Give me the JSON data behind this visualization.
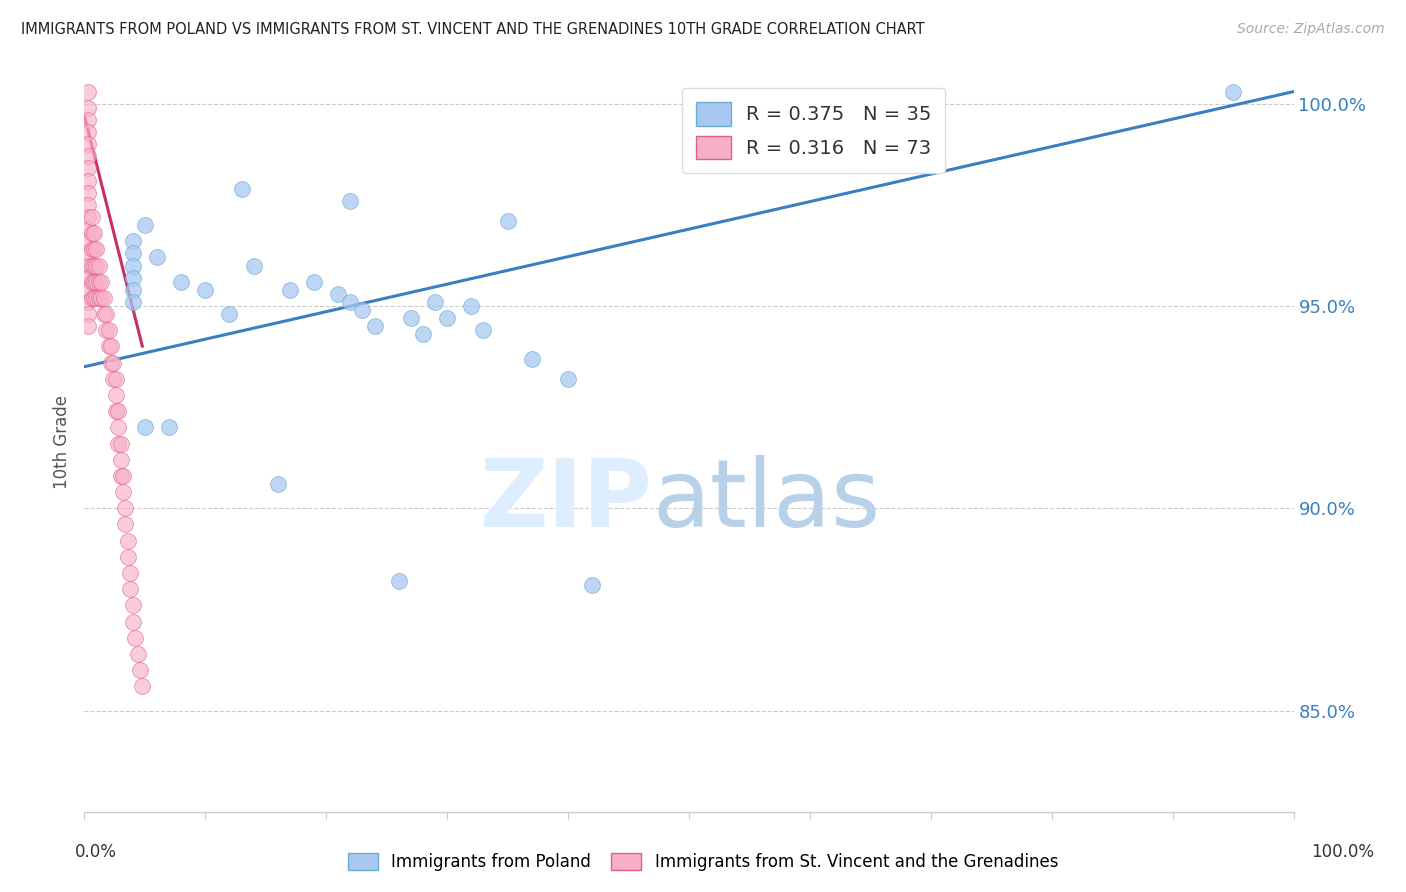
{
  "title": "IMMIGRANTS FROM POLAND VS IMMIGRANTS FROM ST. VINCENT AND THE GRENADINES 10TH GRADE CORRELATION CHART",
  "source": "Source: ZipAtlas.com",
  "ylabel": "10th Grade",
  "ytick_labels": [
    "85.0%",
    "90.0%",
    "95.0%",
    "100.0%"
  ],
  "ytick_values": [
    0.85,
    0.9,
    0.95,
    1.0
  ],
  "xlim": [
    0.0,
    1.0
  ],
  "ylim": [
    0.825,
    1.008
  ],
  "poland_color": "#a8c8f0",
  "poland_edge": "#6aaed6",
  "svg_color": "#f8b0c8",
  "svg_edge": "#e06080",
  "poland_scatter_x": [
    0.95,
    0.13,
    0.22,
    0.35,
    0.04,
    0.04,
    0.04,
    0.04,
    0.04,
    0.04,
    0.05,
    0.06,
    0.08,
    0.1,
    0.12,
    0.14,
    0.17,
    0.19,
    0.21,
    0.22,
    0.23,
    0.24,
    0.27,
    0.28,
    0.29,
    0.3,
    0.32,
    0.33,
    0.37,
    0.4,
    0.05,
    0.07,
    0.16,
    0.26,
    0.42
  ],
  "poland_scatter_y": [
    1.003,
    0.979,
    0.976,
    0.971,
    0.966,
    0.963,
    0.96,
    0.957,
    0.954,
    0.951,
    0.97,
    0.962,
    0.956,
    0.954,
    0.948,
    0.96,
    0.954,
    0.956,
    0.953,
    0.951,
    0.949,
    0.945,
    0.947,
    0.943,
    0.951,
    0.947,
    0.95,
    0.944,
    0.937,
    0.932,
    0.92,
    0.92,
    0.906,
    0.882,
    0.881
  ],
  "svg_scatter_x": [
    0.003,
    0.003,
    0.003,
    0.003,
    0.003,
    0.003,
    0.003,
    0.003,
    0.003,
    0.003,
    0.003,
    0.003,
    0.003,
    0.003,
    0.003,
    0.003,
    0.003,
    0.003,
    0.003,
    0.003,
    0.006,
    0.006,
    0.006,
    0.006,
    0.006,
    0.006,
    0.008,
    0.008,
    0.008,
    0.008,
    0.008,
    0.01,
    0.01,
    0.01,
    0.01,
    0.012,
    0.012,
    0.012,
    0.014,
    0.014,
    0.016,
    0.016,
    0.018,
    0.018,
    0.02,
    0.02,
    0.022,
    0.022,
    0.024,
    0.024,
    0.026,
    0.026,
    0.026,
    0.028,
    0.028,
    0.028,
    0.03,
    0.03,
    0.03,
    0.032,
    0.032,
    0.034,
    0.034,
    0.036,
    0.036,
    0.038,
    0.038,
    0.04,
    0.04,
    0.042,
    0.044,
    0.046,
    0.048
  ],
  "svg_scatter_y": [
    1.003,
    0.999,
    0.996,
    0.993,
    0.99,
    0.987,
    0.984,
    0.981,
    0.978,
    0.975,
    0.972,
    0.969,
    0.966,
    0.963,
    0.96,
    0.957,
    0.954,
    0.951,
    0.948,
    0.945,
    0.972,
    0.968,
    0.964,
    0.96,
    0.956,
    0.952,
    0.968,
    0.964,
    0.96,
    0.956,
    0.952,
    0.964,
    0.96,
    0.956,
    0.952,
    0.96,
    0.956,
    0.952,
    0.956,
    0.952,
    0.952,
    0.948,
    0.948,
    0.944,
    0.944,
    0.94,
    0.94,
    0.936,
    0.936,
    0.932,
    0.932,
    0.928,
    0.924,
    0.924,
    0.92,
    0.916,
    0.916,
    0.912,
    0.908,
    0.908,
    0.904,
    0.9,
    0.896,
    0.892,
    0.888,
    0.884,
    0.88,
    0.876,
    0.872,
    0.868,
    0.864,
    0.86,
    0.856
  ],
  "poland_trendline_x": [
    0.0,
    1.0
  ],
  "poland_trendline_y": [
    0.935,
    1.003
  ],
  "svg_trendline_x": [
    0.0,
    0.048
  ],
  "svg_trendline_y": [
    0.997,
    0.94
  ],
  "legend_r1": "R = 0.375",
  "legend_n1": "N = 35",
  "legend_r2": "R = 0.316",
  "legend_n2": "N = 73",
  "legend_blue_color": "#4a90d9",
  "legend_pink_color": "#e06080",
  "watermark_zip": "ZIP",
  "watermark_atlas": "atlas",
  "bottom_label1": "Immigrants from Poland",
  "bottom_label2": "Immigrants from St. Vincent and the Grenadines"
}
